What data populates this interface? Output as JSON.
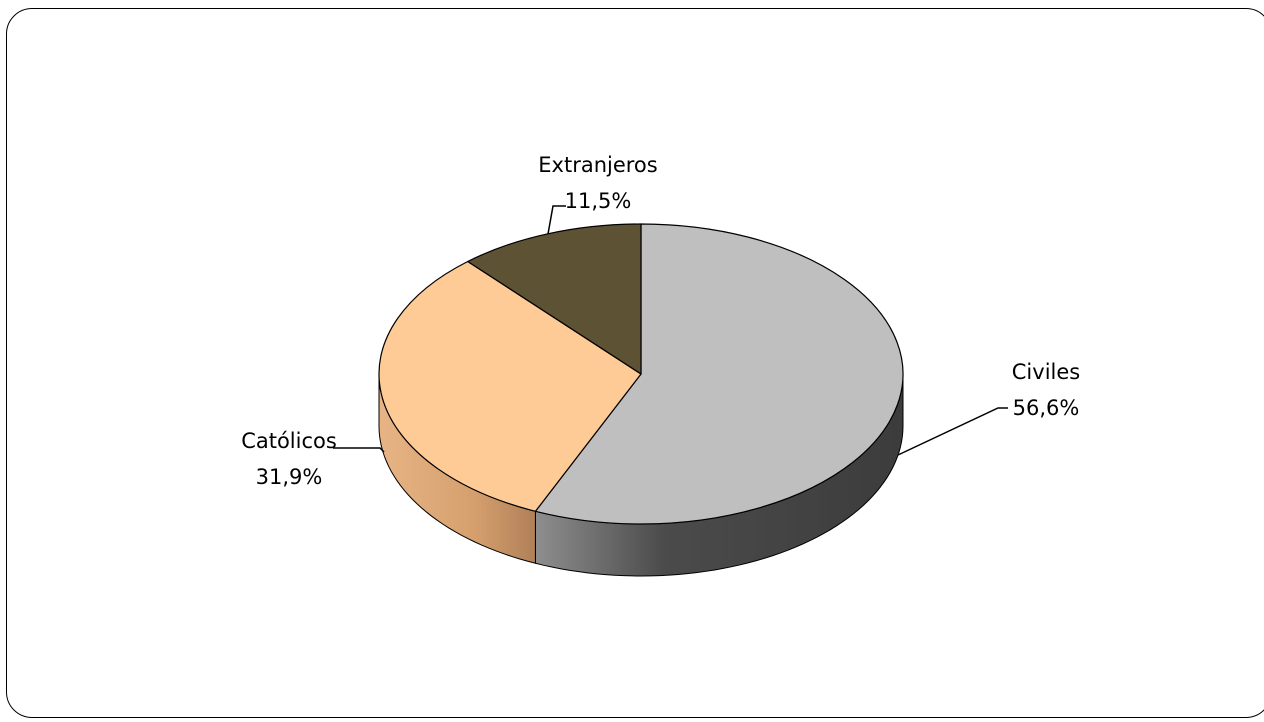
{
  "chart_data": {
    "type": "pie",
    "style": "3d",
    "categories": [
      "Civiles",
      "Católicos",
      "Extranjeros"
    ],
    "values": [
      56.6,
      31.9,
      11.5
    ],
    "value_labels": [
      "56,6%",
      "31,9%",
      "11,5%"
    ],
    "colors": {
      "Civiles": "#bfbfbf",
      "Católicos": "#fecb97",
      "Extranjeros": "#5d5233"
    },
    "side_colors": {
      "Civiles": "#4a4a4a",
      "Católicos": "#c99260",
      "Extranjeros": "#3a321d"
    },
    "legend": "none",
    "start_angle_deg": 0,
    "direction": "clockwise"
  }
}
